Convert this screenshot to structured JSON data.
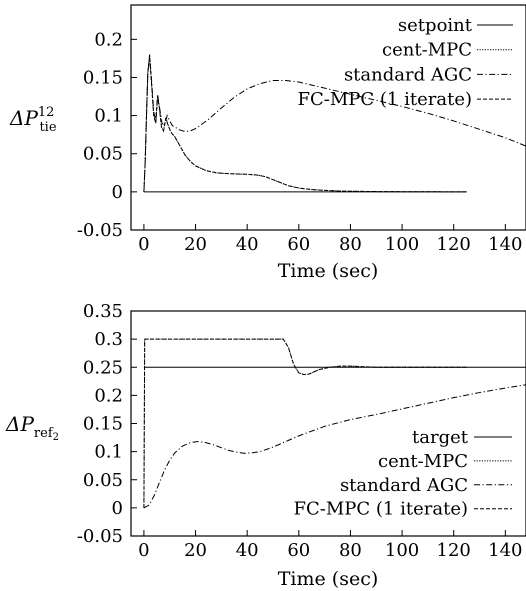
{
  "chart_data": [
    {
      "type": "line",
      "ylabel": "ΔP^12_tie",
      "xlabel": "Time (sec)",
      "xlim": [
        -5,
        148
      ],
      "ylim": [
        -0.05,
        0.245
      ],
      "xticks": [
        0,
        20,
        40,
        60,
        80,
        100,
        120,
        140
      ],
      "yticks": [
        -0.05,
        0,
        0.05,
        0.1,
        0.15,
        0.2
      ],
      "ytick_labels": [
        "-0.05",
        "0",
        "0.05",
        "0.1",
        "0.15",
        "0.2"
      ],
      "legend_position": "top-right",
      "grid": false,
      "series": [
        {
          "name": "setpoint",
          "style": "solid",
          "x": [
            0,
            125
          ],
          "y": [
            0,
            0
          ]
        },
        {
          "name": "cent-MPC",
          "style": "dotted",
          "x": [
            0,
            0.5,
            1,
            1.5,
            2.2,
            3,
            3.8,
            4.6,
            5.3,
            6,
            6.8,
            7.6,
            8.5,
            9.3,
            10.5,
            12,
            14,
            16,
            18,
            20,
            24,
            28,
            32,
            36,
            40,
            44,
            47,
            50,
            53,
            56,
            60,
            65,
            70,
            75,
            80,
            90,
            100,
            110,
            125
          ],
          "y": [
            0,
            0.04,
            0.1,
            0.155,
            0.178,
            0.14,
            0.1,
            0.09,
            0.125,
            0.11,
            0.085,
            0.08,
            0.097,
            0.088,
            0.078,
            0.072,
            0.06,
            0.048,
            0.04,
            0.034,
            0.028,
            0.025,
            0.024,
            0.0235,
            0.023,
            0.022,
            0.02,
            0.016,
            0.012,
            0.008,
            0.005,
            0.003,
            0.002,
            0.0012,
            0.0008,
            0.0004,
            0.0002,
            0.0001,
            0
          ]
        },
        {
          "name": "standard AGC",
          "style": "dashdot",
          "x": [
            0,
            0.5,
            1,
            1.5,
            2.2,
            3,
            3.8,
            4.6,
            5.3,
            6,
            7,
            8,
            9,
            10,
            11,
            12,
            14,
            16,
            18,
            20,
            25,
            30,
            35,
            40,
            45,
            50,
            55,
            60,
            65,
            70,
            80,
            90,
            100,
            110,
            120,
            130,
            140,
            148
          ],
          "y": [
            0,
            0.04,
            0.1,
            0.155,
            0.18,
            0.145,
            0.105,
            0.093,
            0.128,
            0.112,
            0.09,
            0.087,
            0.1,
            0.093,
            0.087,
            0.085,
            0.081,
            0.079,
            0.08,
            0.083,
            0.095,
            0.11,
            0.124,
            0.135,
            0.142,
            0.146,
            0.146,
            0.144,
            0.14,
            0.136,
            0.128,
            0.12,
            0.112,
            0.103,
            0.093,
            0.082,
            0.071,
            0.06
          ]
        },
        {
          "name": "FC-MPC (1 iterate)",
          "style": "dashed",
          "x": [
            0,
            0.5,
            1,
            1.5,
            2.2,
            3,
            3.8,
            4.6,
            5.3,
            6,
            6.8,
            7.6,
            8.5,
            9.3,
            10.5,
            12,
            14,
            16,
            18,
            20,
            24,
            28,
            32,
            36,
            40,
            44,
            47,
            50,
            53,
            56,
            60,
            65,
            70,
            75,
            80,
            90,
            100,
            110,
            125
          ],
          "y": [
            0,
            0.04,
            0.1,
            0.155,
            0.178,
            0.14,
            0.1,
            0.09,
            0.125,
            0.11,
            0.085,
            0.08,
            0.097,
            0.088,
            0.078,
            0.072,
            0.06,
            0.048,
            0.04,
            0.034,
            0.028,
            0.025,
            0.024,
            0.0235,
            0.023,
            0.022,
            0.02,
            0.016,
            0.012,
            0.008,
            0.005,
            0.003,
            0.002,
            0.0012,
            0.0008,
            0.0004,
            0.0002,
            0.0001,
            0
          ]
        }
      ]
    },
    {
      "type": "line",
      "ylabel": "ΔP_ref2",
      "xlabel": "Time (sec)",
      "xlim": [
        -5,
        148
      ],
      "ylim": [
        -0.05,
        0.35
      ],
      "xticks": [
        0,
        20,
        40,
        60,
        80,
        100,
        120,
        140
      ],
      "yticks": [
        -0.05,
        0,
        0.05,
        0.1,
        0.15,
        0.2,
        0.25,
        0.3,
        0.35
      ],
      "ytick_labels": [
        "-0.05",
        "0",
        "0.05",
        "0.1",
        "0.15",
        "0.2",
        "0.25",
        "0.3",
        "0.35"
      ],
      "legend_position": "bottom-right",
      "grid": false,
      "series": [
        {
          "name": "target",
          "style": "solid",
          "x": [
            0,
            148
          ],
          "y": [
            0.25,
            0.25
          ]
        },
        {
          "name": "cent-MPC",
          "style": "dotted",
          "x": [
            0,
            0.3,
            5,
            10,
            20,
            30,
            40,
            50,
            54,
            56,
            58,
            60,
            62,
            64,
            66,
            68,
            72,
            76,
            80,
            85,
            90,
            100,
            110,
            125
          ],
          "y": [
            0,
            0.3,
            0.3,
            0.3,
            0.3,
            0.3,
            0.3,
            0.3,
            0.3,
            0.285,
            0.255,
            0.24,
            0.237,
            0.238,
            0.242,
            0.246,
            0.25,
            0.252,
            0.252,
            0.251,
            0.25,
            0.25,
            0.25,
            0.25
          ]
        },
        {
          "name": "standard AGC",
          "style": "dashdot",
          "x": [
            0,
            2,
            4,
            6,
            8,
            10,
            12,
            15,
            18,
            21,
            24,
            27,
            30,
            33,
            36,
            39,
            42,
            45,
            50,
            55,
            60,
            70,
            80,
            90,
            100,
            110,
            120,
            130,
            140,
            148
          ],
          "y": [
            0,
            0.005,
            0.022,
            0.045,
            0.067,
            0.085,
            0.098,
            0.11,
            0.116,
            0.118,
            0.116,
            0.112,
            0.107,
            0.102,
            0.099,
            0.097,
            0.098,
            0.1,
            0.108,
            0.118,
            0.128,
            0.145,
            0.157,
            0.166,
            0.176,
            0.186,
            0.196,
            0.205,
            0.213,
            0.219
          ]
        },
        {
          "name": "FC-MPC (1 iterate)",
          "style": "dashed",
          "x": [
            0,
            0.3,
            5,
            10,
            20,
            30,
            40,
            50,
            54,
            56,
            58,
            60,
            62,
            64,
            66,
            68,
            72,
            76,
            80,
            85,
            90,
            100,
            110,
            125
          ],
          "y": [
            0,
            0.3,
            0.3,
            0.3,
            0.3,
            0.3,
            0.3,
            0.3,
            0.3,
            0.285,
            0.255,
            0.24,
            0.237,
            0.238,
            0.242,
            0.246,
            0.25,
            0.252,
            0.252,
            0.251,
            0.25,
            0.25,
            0.25,
            0.25
          ]
        }
      ]
    }
  ]
}
